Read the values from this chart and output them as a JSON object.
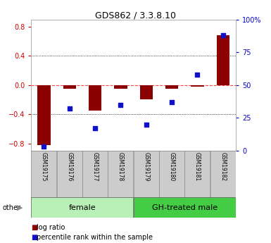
{
  "title": "GDS862 / 3.3.8.10",
  "samples": [
    "GSM19175",
    "GSM19176",
    "GSM19177",
    "GSM19178",
    "GSM19179",
    "GSM19180",
    "GSM19181",
    "GSM19182"
  ],
  "log_ratio": [
    -0.82,
    -0.05,
    -0.35,
    -0.05,
    -0.2,
    -0.05,
    -0.02,
    0.68
  ],
  "percentile_rank": [
    3,
    32,
    17,
    35,
    20,
    37,
    58,
    88
  ],
  "ylim_left": [
    -0.9,
    0.9
  ],
  "ylim_right": [
    0,
    100
  ],
  "yticks_left": [
    -0.8,
    -0.4,
    0.0,
    0.4,
    0.8
  ],
  "yticks_right": [
    0,
    25,
    50,
    75,
    100
  ],
  "ytick_labels_right": [
    "0",
    "25",
    "50",
    "75",
    "100%"
  ],
  "groups": [
    {
      "label": "female",
      "start": 0,
      "end": 3,
      "color": "#b8f0b8"
    },
    {
      "label": "GH-treated male",
      "start": 4,
      "end": 7,
      "color": "#44cc44"
    }
  ],
  "bar_color": "#8B0000",
  "dot_color": "#1111CC",
  "zero_line_color": "#FF4444",
  "grid_color": "#000000",
  "bg_color": "#ffffff",
  "label_color_left": "#CC0000",
  "label_color_right": "#0000CC",
  "sample_box_color": "#cccccc",
  "sample_box_edge": "#888888"
}
